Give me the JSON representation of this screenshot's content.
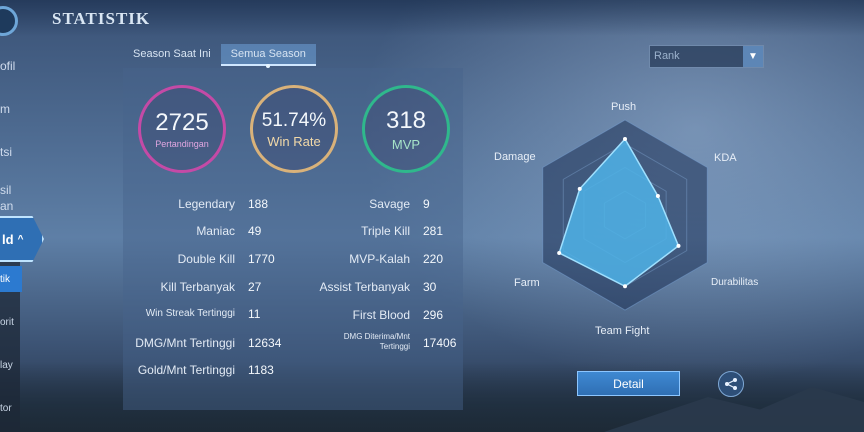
{
  "header": {
    "title": "STATISTIK"
  },
  "sidebar": {
    "items": [
      {
        "label": "ofil"
      },
      {
        "label": "m"
      },
      {
        "label": "tsi"
      },
      {
        "label": "sil\nan"
      }
    ],
    "active_label": "ld",
    "sub_items": [
      "tik",
      "orit",
      "lay",
      "tor"
    ]
  },
  "tabs": [
    {
      "label": "Season Saat Ini"
    },
    {
      "label": "Semua Season"
    }
  ],
  "rank_select": {
    "value": "Rank"
  },
  "summary": {
    "matches": {
      "value": "2725",
      "label": "Pertandingan"
    },
    "win_rate": {
      "value": "51.74%",
      "label": "Win Rate"
    },
    "mvp": {
      "value": "318",
      "label": "MVP"
    }
  },
  "stats_left": [
    {
      "label": "Legendary",
      "value": "188"
    },
    {
      "label": "Maniac",
      "value": "49"
    },
    {
      "label": "Double Kill",
      "value": "1770"
    },
    {
      "label": "Kill Terbanyak",
      "value": "27"
    },
    {
      "label": "Win Streak Tertinggi",
      "value": "11"
    },
    {
      "label": "DMG/Mnt Tertinggi",
      "value": "12634"
    },
    {
      "label": "Gold/Mnt Tertinggi",
      "value": "1183"
    }
  ],
  "stats_right": [
    {
      "label": "Savage",
      "value": "9"
    },
    {
      "label": "Triple Kill",
      "value": "281"
    },
    {
      "label": "MVP-Kalah",
      "value": "220"
    },
    {
      "label": "Assist Terbanyak",
      "value": "30"
    },
    {
      "label": "First Blood",
      "value": "296"
    },
    {
      "label": "DMG Diterima/Mnt Tertinggi",
      "value": "17406"
    }
  ],
  "radar": {
    "axes": [
      "Push",
      "KDA",
      "Durabilitas",
      "Team Fight",
      "Farm",
      "Damage"
    ],
    "values": [
      0.8,
      0.4,
      0.65,
      0.75,
      0.8,
      0.55
    ],
    "fill_color": "#4fb3e8",
    "stroke_color": "#9fe0ff"
  },
  "buttons": {
    "detail": "Detail",
    "share_icon": "share-icon"
  }
}
